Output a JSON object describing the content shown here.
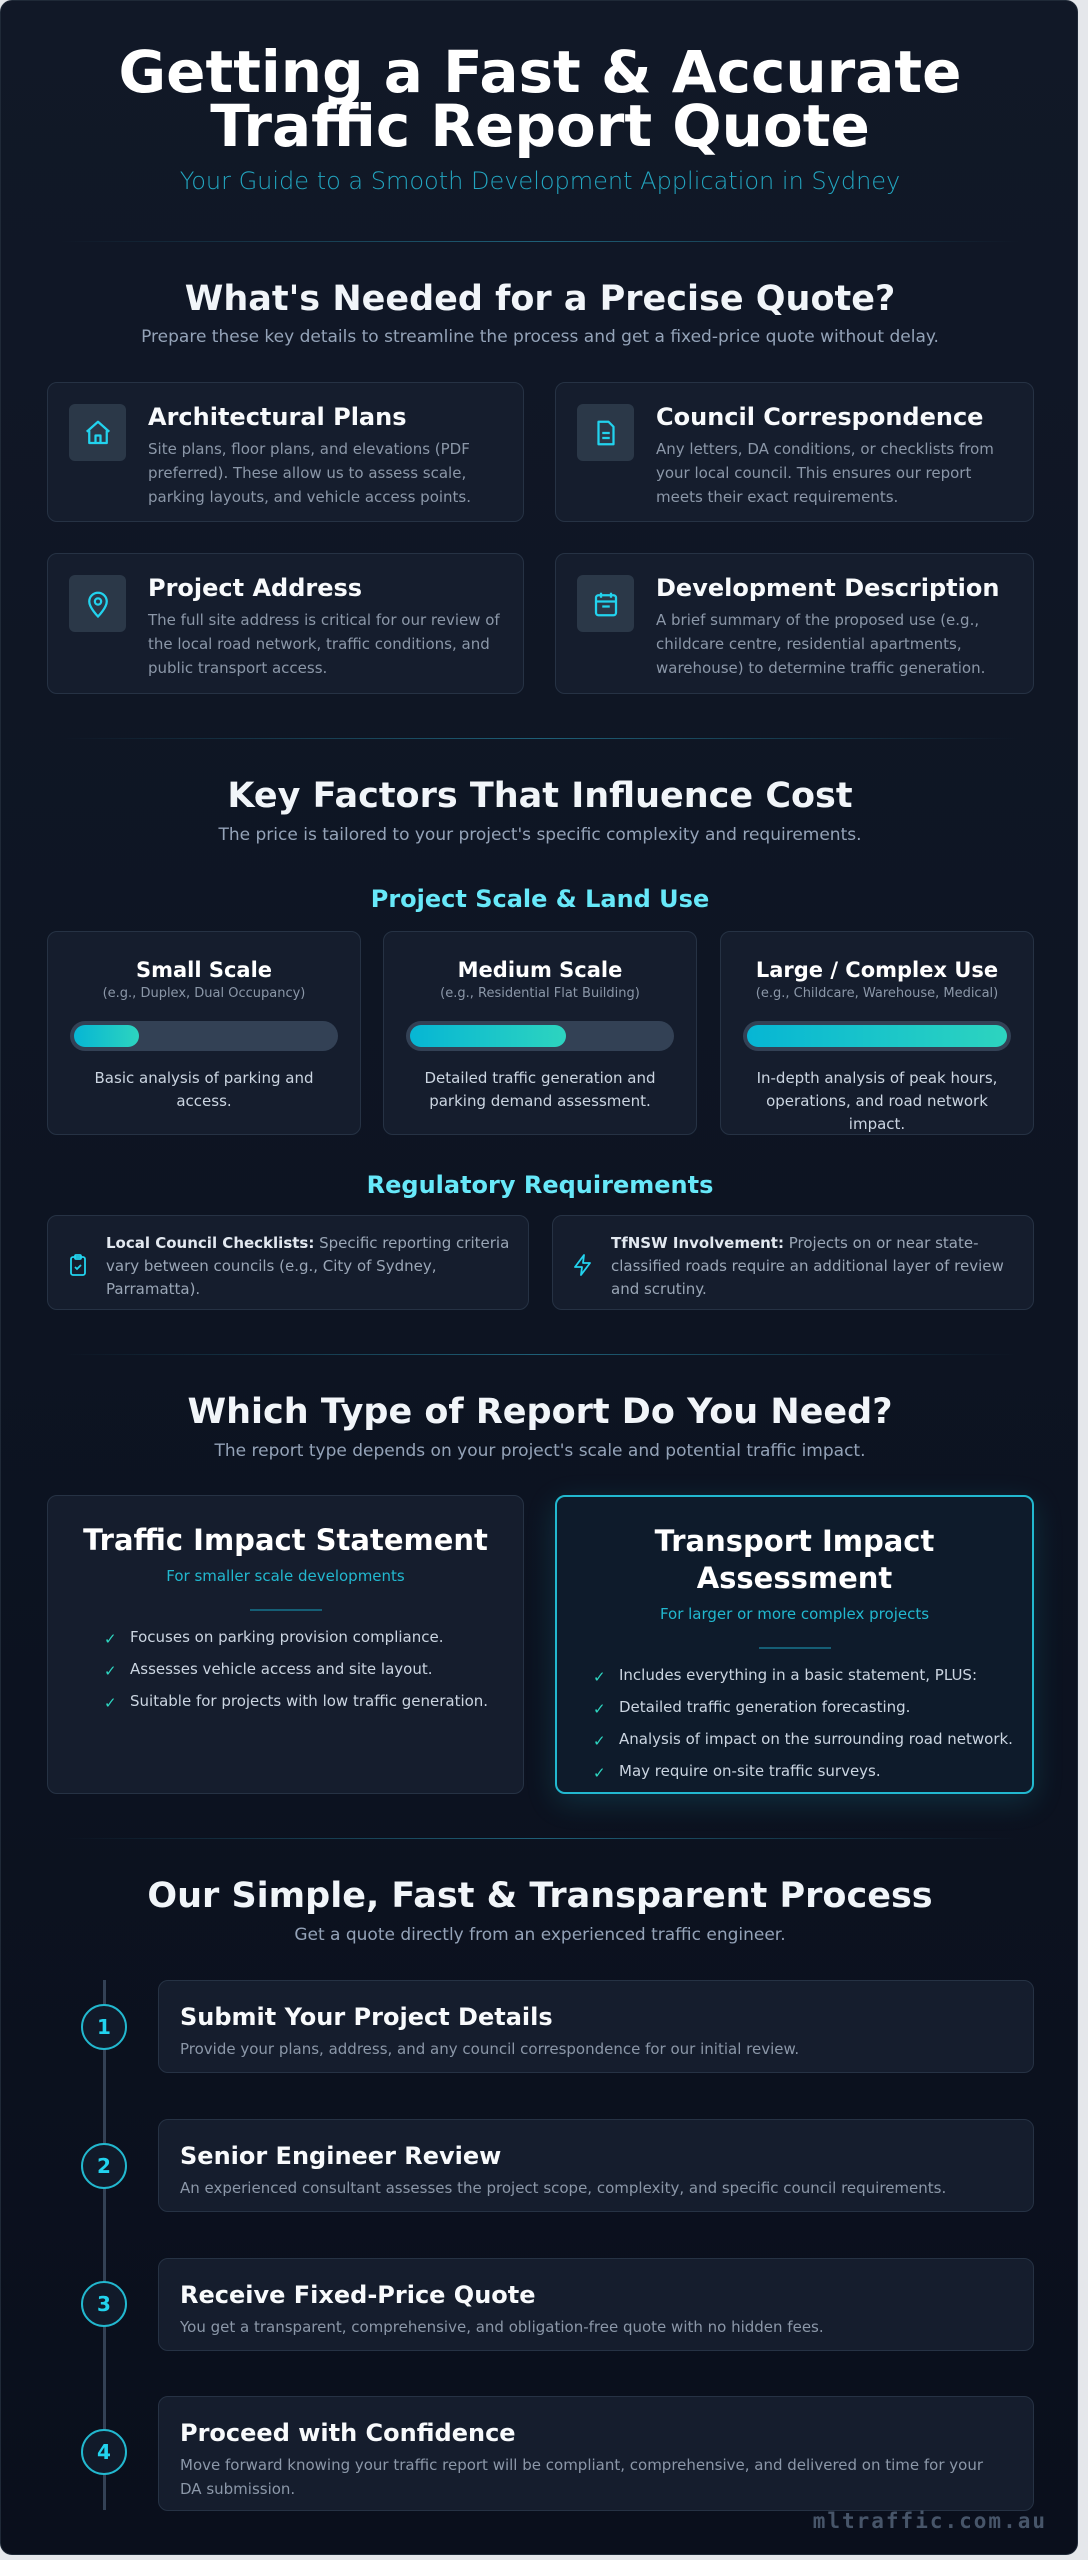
{
  "header": {
    "title": "Getting a Fast & Accurate Traffic Report Quote",
    "subtitle": "Your Guide to a Smooth Development Application in Sydney"
  },
  "needed": {
    "title": "What's Needed for a Precise Quote?",
    "subtitle": "Prepare these key details to streamline the process and get a fixed-price quote without delay.",
    "items": [
      {
        "icon": "house-icon",
        "title": "Architectural Plans",
        "text": "Site plans, floor plans, and elevations (PDF preferred). These allow us to assess scale, parking layouts, and vehicle access points."
      },
      {
        "icon": "document-icon",
        "title": "Council Correspondence",
        "text": "Any letters, DA conditions, or checklists from your local council. This ensures our report meets their exact requirements."
      },
      {
        "icon": "map-pin-icon",
        "title": "Project Address",
        "text": "The full site address is critical for our review of the local road network, traffic conditions, and public transport access."
      },
      {
        "icon": "calendar-icon",
        "title": "Development Description",
        "text": "A brief summary of the proposed use (e.g., childcare centre, residential apartments, warehouse) to determine traffic generation."
      }
    ]
  },
  "factors": {
    "title": "Key Factors That Influence Cost",
    "subtitle": "The price is tailored to your project's specific complexity and requirements.",
    "scale_title": "Project Scale & Land Use",
    "scales": [
      {
        "title": "Small Scale",
        "example": "(e.g., Duplex, Dual Occupancy)",
        "level_percent": 25,
        "text": "Basic analysis of parking and access."
      },
      {
        "title": "Medium Scale",
        "example": "(e.g., Residential Flat Building)",
        "level_percent": 60,
        "text": "Detailed traffic generation and parking demand assessment."
      },
      {
        "title": "Large / Complex Use",
        "example": "(e.g., Childcare, Warehouse, Medical)",
        "level_percent": 100,
        "text": "In-depth analysis of peak hours, operations, and road network impact."
      }
    ],
    "reg_title": "Regulatory Requirements",
    "regs": [
      {
        "icon": "clipboard-check-icon",
        "label": "Local Council Checklists:",
        "text": " Specific reporting criteria vary between councils (e.g., City of Sydney, Parramatta)."
      },
      {
        "icon": "lightning-icon",
        "label": "TfNSW Involvement:",
        "text": " Projects on or near state-classified roads require an additional layer of review and scrutiny."
      }
    ]
  },
  "reports": {
    "title": "Which Type of Report Do You Need?",
    "subtitle": "The report type depends on your project's scale and potential traffic impact.",
    "items": [
      {
        "title": "Traffic Impact Statement",
        "for": "For smaller scale developments",
        "points": [
          "Focuses on parking provision compliance.",
          "Assesses vehicle access and site layout.",
          "Suitable for projects with low traffic generation."
        ]
      },
      {
        "title": "Transport Impact Assessment",
        "for": "For larger or more complex projects",
        "points": [
          "Includes everything in a basic statement, PLUS:",
          "Detailed traffic generation forecasting.",
          "Analysis of impact on the surrounding road network.",
          "May require on-site traffic surveys."
        ]
      }
    ]
  },
  "process": {
    "title": "Our Simple, Fast & Transparent Process",
    "subtitle": "Get a quote directly from an experienced traffic engineer.",
    "steps": [
      {
        "num": "1",
        "title": "Submit Your Project Details",
        "text": "Provide your plans, address, and any council correspondence for our initial review."
      },
      {
        "num": "2",
        "title": "Senior Engineer Review",
        "text": "An experienced consultant assesses the project scope, complexity, and specific council requirements."
      },
      {
        "num": "3",
        "title": "Receive Fixed-Price Quote",
        "text": "You get a transparent, comprehensive, and obligation-free quote with no hidden fees."
      },
      {
        "num": "4",
        "title": "Proceed with Confidence",
        "text": "Move forward knowing your traffic report will be compliant, comprehensive, and delivered on time for your DA submission."
      }
    ]
  },
  "footer": {
    "brand": "mltraffic.com.au"
  },
  "colors": {
    "accent": "#22b8cf",
    "accent_light": "#67e8f9",
    "check": "#2dd4bf",
    "background": "#0f172a"
  }
}
